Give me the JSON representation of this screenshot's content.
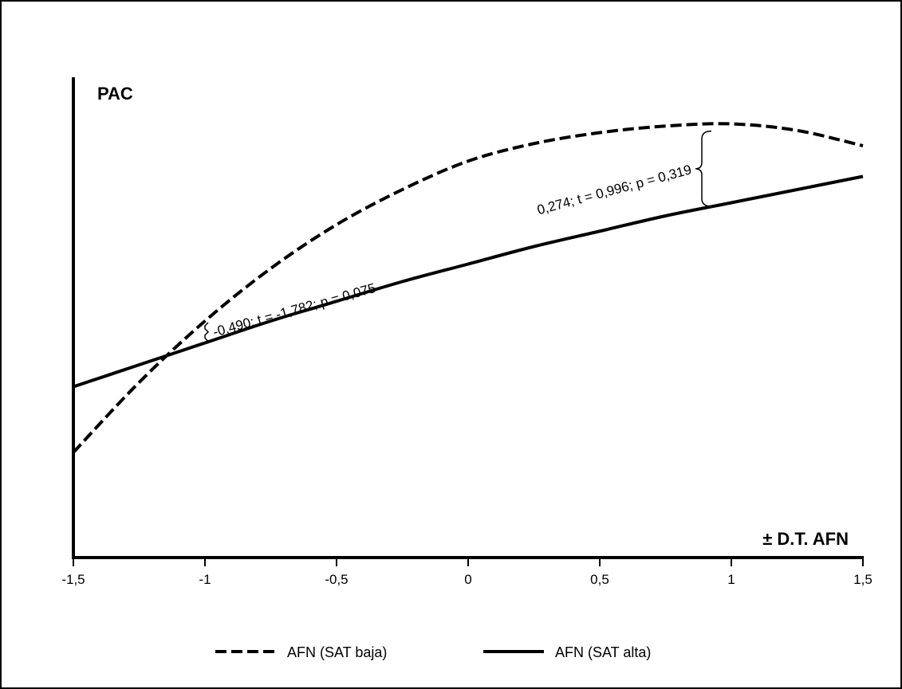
{
  "chart_data": {
    "type": "line",
    "title": "",
    "xlabel": "± D.T. AFN",
    "ylabel": "PAC",
    "xlim": [
      -1.5,
      1.5
    ],
    "ylim": [
      0,
      1
    ],
    "x_ticks": [
      -1.5,
      -1,
      -0.5,
      0,
      0.5,
      1,
      1.5
    ],
    "x_tick_labels": [
      "-1,5",
      "-1",
      "-0,5",
      "0",
      "0,5",
      "1",
      "1,5"
    ],
    "y_ticks_shown": false,
    "grid": false,
    "legend_position": "bottom-center",
    "series": [
      {
        "name": "AFN (SAT baja)",
        "style": "dashed",
        "color": "#000000",
        "x": [
          -1.5,
          -1.25,
          -1.0,
          -0.75,
          -0.5,
          -0.25,
          0.0,
          0.25,
          0.5,
          0.75,
          1.0,
          1.25,
          1.5
        ],
        "y": [
          0.24,
          0.4,
          0.54,
          0.66,
          0.76,
          0.84,
          0.905,
          0.945,
          0.97,
          0.985,
          0.99,
          0.975,
          0.94
        ]
      },
      {
        "name": "AFN (SAT alta)",
        "style": "solid",
        "color": "#000000",
        "x": [
          -1.5,
          -1.25,
          -1.0,
          -0.75,
          -0.5,
          -0.25,
          0.0,
          0.25,
          0.5,
          0.75,
          1.0,
          1.25,
          1.5
        ],
        "y": [
          0.39,
          0.44,
          0.49,
          0.54,
          0.585,
          0.63,
          0.67,
          0.71,
          0.745,
          0.78,
          0.81,
          0.84,
          0.87
        ]
      }
    ],
    "annotations": [
      {
        "text": "-0,490; t = -1,782; p = 0,075",
        "x": -1.0,
        "angle": -15.5
      },
      {
        "text": "0,274; t = 0,996; p = 0,319",
        "x": 0.9,
        "angle": -15.0
      }
    ]
  }
}
